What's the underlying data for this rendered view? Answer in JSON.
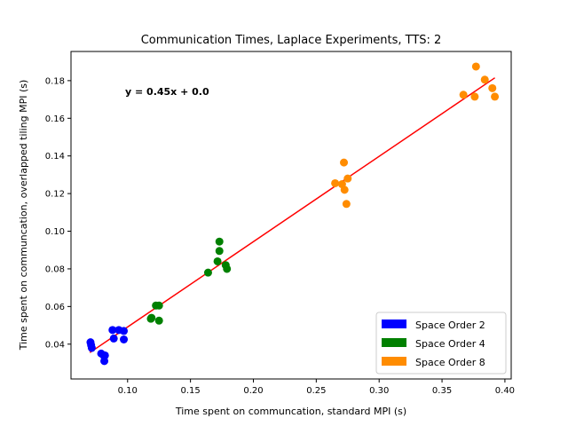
{
  "chart_data": {
    "type": "scatter",
    "title": "Communication Times, Laplace Experiments, TTS: 2",
    "xlabel": "Time spent on communcation, standard MPI (s)",
    "ylabel": "Time spent on communcation, overlapped tiling MPI (s)",
    "xlim": [
      0.055,
      0.405
    ],
    "ylim": [
      0.0215,
      0.1955
    ],
    "xticks": [
      "0.10",
      "0.15",
      "0.20",
      "0.25",
      "0.30",
      "0.35",
      "0.40"
    ],
    "yticks": [
      "0.04",
      "0.06",
      "0.08",
      "0.10",
      "0.12",
      "0.14",
      "0.16",
      "0.18"
    ],
    "annotation": "y = 0.45x + 0.0",
    "grid": false,
    "legend_position": "lower-right",
    "fit_line": {
      "x": [
        0.07,
        0.392
      ],
      "y": [
        0.0355,
        0.1815
      ],
      "color": "#ff0000"
    },
    "series": [
      {
        "name": "Space Order 2",
        "color": "#0000ff",
        "points": [
          [
            0.0705,
            0.041
          ],
          [
            0.071,
            0.0395
          ],
          [
            0.0715,
            0.038
          ],
          [
            0.079,
            0.035
          ],
          [
            0.081,
            0.034
          ],
          [
            0.082,
            0.034
          ],
          [
            0.0815,
            0.031
          ],
          [
            0.088,
            0.0475
          ],
          [
            0.089,
            0.043
          ],
          [
            0.093,
            0.0475
          ],
          [
            0.097,
            0.047
          ],
          [
            0.097,
            0.0425
          ]
        ]
      },
      {
        "name": "Space Order 4",
        "color": "#008000",
        "points": [
          [
            0.1185,
            0.0535
          ],
          [
            0.119,
            0.054
          ],
          [
            0.1225,
            0.0605
          ],
          [
            0.125,
            0.0605
          ],
          [
            0.125,
            0.0525
          ],
          [
            0.164,
            0.078
          ],
          [
            0.1715,
            0.084
          ],
          [
            0.173,
            0.0945
          ],
          [
            0.173,
            0.0895
          ],
          [
            0.178,
            0.082
          ],
          [
            0.179,
            0.08
          ]
        ]
      },
      {
        "name": "Space Order 8",
        "color": "#ff8c00",
        "points": [
          [
            0.265,
            0.1255
          ],
          [
            0.2705,
            0.125
          ],
          [
            0.272,
            0.1365
          ],
          [
            0.2725,
            0.122
          ],
          [
            0.275,
            0.128
          ],
          [
            0.274,
            0.1145
          ],
          [
            0.367,
            0.1725
          ],
          [
            0.376,
            0.1715
          ],
          [
            0.377,
            0.1875
          ],
          [
            0.384,
            0.1805
          ],
          [
            0.39,
            0.176
          ],
          [
            0.392,
            0.1715
          ]
        ]
      }
    ]
  }
}
